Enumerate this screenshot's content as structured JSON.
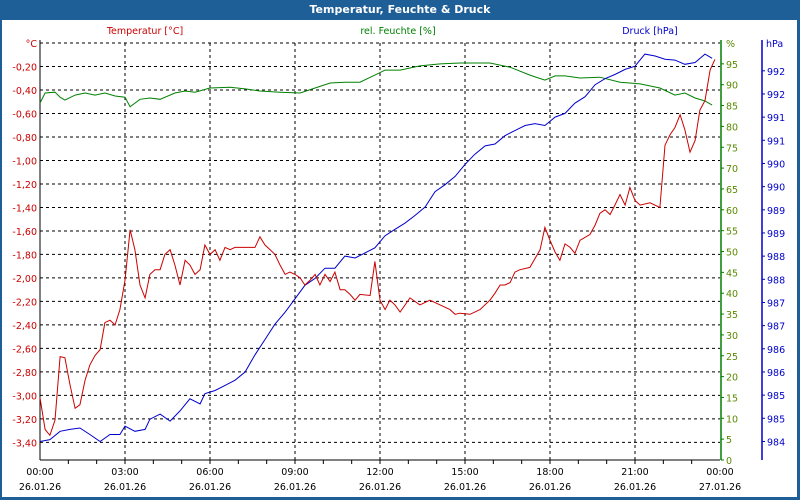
{
  "window": {
    "title": "Temperatur, Feuchte & Druck"
  },
  "chart_data": {
    "type": "line",
    "title": "Temperatur, Feuchte & Druck",
    "xlabel": "",
    "x_unit": "hours since 26.01.26 00:00",
    "xlim": [
      0,
      24
    ],
    "x_ticks": [
      {
        "time": "00:00",
        "date": "26.01.26",
        "h": 0
      },
      {
        "time": "03:00",
        "date": "26.01.26",
        "h": 3
      },
      {
        "time": "06:00",
        "date": "26.01.26",
        "h": 6
      },
      {
        "time": "09:00",
        "date": "26.01.26",
        "h": 9
      },
      {
        "time": "12:00",
        "date": "26.01.26",
        "h": 12
      },
      {
        "time": "15:00",
        "date": "26.01.26",
        "h": 15
      },
      {
        "time": "18:00",
        "date": "26.01.26",
        "h": 18
      },
      {
        "time": "21:00",
        "date": "26.01.26",
        "h": 21
      },
      {
        "time": "00:00",
        "date": "27.01.26",
        "h": 24
      }
    ],
    "grid": true,
    "axes": {
      "temperature": {
        "label": "Temperatur [°C]",
        "unit": "°C",
        "color": "#cc0000",
        "ylim": [
          -3.55,
          0.0
        ],
        "ticks": [
          "-0,20",
          "-0,40",
          "-0,60",
          "-0,80",
          "-1,00",
          "-1,20",
          "-1,40",
          "-1,60",
          "-1,80",
          "-2,00",
          "-2,20",
          "-2,40",
          "-2,60",
          "-2,80",
          "-3,00",
          "-3,20",
          "-3,40"
        ],
        "tick_values": [
          -0.2,
          -0.4,
          -0.6,
          -0.8,
          -1.0,
          -1.2,
          -1.4,
          -1.6,
          -1.8,
          -2.0,
          -2.2,
          -2.4,
          -2.6,
          -2.8,
          -3.0,
          -3.2,
          -3.4
        ]
      },
      "humidity": {
        "label": "rel. Feuchte [%]",
        "unit": "%",
        "color": "#008000",
        "ylim": [
          0,
          100
        ],
        "ticks": [
          "95",
          "90",
          "85",
          "80",
          "75",
          "70",
          "65",
          "60",
          "55",
          "50",
          "45",
          "40",
          "35",
          "30",
          "25",
          "20",
          "15",
          "10",
          "5",
          "0"
        ],
        "tick_values": [
          95,
          90,
          85,
          80,
          75,
          70,
          65,
          60,
          55,
          50,
          45,
          40,
          35,
          30,
          25,
          20,
          15,
          10,
          5,
          0
        ]
      },
      "pressure": {
        "label": "Druck [hPa]",
        "unit": "hPa",
        "color": "#0000cc",
        "ylim": [
          983.6,
          992.6
        ],
        "ticks": [
          "992",
          "992",
          "991",
          "991",
          "990",
          "990",
          "989",
          "989",
          "988",
          "988",
          "987",
          "987",
          "986",
          "986",
          "985",
          "985",
          "984"
        ],
        "tick_values": [
          992,
          991.5,
          991,
          990.5,
          990,
          989.5,
          989,
          988.5,
          988,
          987.5,
          987,
          986.5,
          986,
          985.5,
          985,
          984.5,
          984
        ]
      }
    },
    "series": [
      {
        "name": "Temperatur [°C]",
        "axis": "temperature",
        "color": "#cc0000",
        "t": [
          0,
          0.18,
          0.35,
          0.53,
          0.71,
          0.88,
          1.06,
          1.24,
          1.41,
          1.59,
          1.76,
          1.94,
          2.12,
          2.29,
          2.47,
          2.65,
          2.82,
          3.0,
          3.18,
          3.35,
          3.53,
          3.71,
          3.88,
          4.06,
          4.24,
          4.41,
          4.59,
          4.76,
          4.94,
          5.12,
          5.29,
          5.47,
          5.65,
          5.82,
          6.0,
          6.18,
          6.35,
          6.53,
          6.71,
          6.88,
          7.24,
          7.59,
          7.76,
          7.94,
          8.12,
          8.29,
          8.47,
          8.65,
          8.82,
          9.0,
          9.18,
          9.35,
          9.53,
          9.71,
          9.88,
          10.06,
          10.24,
          10.41,
          10.59,
          10.76,
          10.94,
          11.12,
          11.29,
          11.65,
          11.82,
          12.0,
          12.18,
          12.35,
          12.53,
          12.71,
          13.06,
          13.41,
          13.76,
          14.12,
          14.47,
          14.65,
          14.82,
          15.18,
          15.53,
          15.88,
          16.06,
          16.24,
          16.41,
          16.59,
          16.76,
          16.94,
          17.29,
          17.65,
          17.82,
          18.0,
          18.18,
          18.35,
          18.53,
          18.71,
          18.88,
          19.06,
          19.41,
          19.59,
          19.76,
          19.94,
          20.12,
          20.29,
          20.47,
          20.65,
          20.82,
          21.0,
          21.18,
          21.53,
          21.88,
          22.06,
          22.24,
          22.41,
          22.59,
          22.76,
          22.94,
          23.12,
          23.29,
          23.47,
          23.65,
          23.82
        ],
        "v": [
          -3.02,
          -3.29,
          -3.34,
          -3.21,
          -2.67,
          -2.68,
          -2.91,
          -3.11,
          -3.08,
          -2.87,
          -2.74,
          -2.66,
          -2.61,
          -2.38,
          -2.36,
          -2.4,
          -2.27,
          -2.02,
          -1.59,
          -1.76,
          -2.06,
          -2.17,
          -1.97,
          -1.93,
          -1.93,
          -1.8,
          -1.76,
          -1.89,
          -2.06,
          -1.85,
          -1.89,
          -1.97,
          -1.93,
          -1.72,
          -1.8,
          -1.76,
          -1.85,
          -1.74,
          -1.76,
          -1.74,
          -1.74,
          -1.74,
          -1.65,
          -1.72,
          -1.76,
          -1.8,
          -1.89,
          -1.97,
          -1.95,
          -1.97,
          -2.0,
          -2.06,
          -2.02,
          -1.97,
          -2.06,
          -1.97,
          -2.03,
          -1.95,
          -2.1,
          -2.1,
          -2.14,
          -2.19,
          -2.14,
          -2.15,
          -1.86,
          -2.19,
          -2.27,
          -2.19,
          -2.23,
          -2.29,
          -2.17,
          -2.23,
          -2.19,
          -2.23,
          -2.27,
          -2.31,
          -2.3,
          -2.31,
          -2.27,
          -2.19,
          -2.13,
          -2.06,
          -2.06,
          -2.04,
          -1.95,
          -1.93,
          -1.91,
          -1.76,
          -1.57,
          -1.68,
          -1.78,
          -1.85,
          -1.71,
          -1.74,
          -1.79,
          -1.68,
          -1.63,
          -1.55,
          -1.45,
          -1.42,
          -1.46,
          -1.38,
          -1.29,
          -1.38,
          -1.23,
          -1.34,
          -1.38,
          -1.36,
          -1.4,
          -0.87,
          -0.78,
          -0.72,
          -0.61,
          -0.74,
          -0.93,
          -0.83,
          -0.57,
          -0.49,
          -0.23,
          -0.14
        ]
      },
      {
        "name": "rel. Feuchte [%]",
        "axis": "humidity",
        "color": "#008000",
        "t": [
          0,
          0.18,
          0.53,
          0.71,
          0.88,
          1.24,
          1.59,
          1.94,
          2.29,
          2.65,
          3.0,
          3.18,
          3.53,
          3.88,
          4.24,
          4.76,
          5.12,
          5.47,
          6.0,
          6.71,
          7.24,
          7.76,
          8.47,
          9.18,
          9.71,
          10.24,
          10.76,
          11.29,
          11.82,
          12.18,
          12.71,
          13.41,
          14.12,
          14.82,
          15.88,
          16.59,
          17.29,
          17.82,
          18.18,
          18.53,
          19.06,
          19.76,
          20.47,
          21.18,
          21.88,
          22.41,
          22.76,
          23.12,
          23.47,
          23.72
        ],
        "v": [
          85.6,
          88.0,
          88.2,
          87.0,
          86.3,
          87.5,
          88.0,
          87.5,
          88.0,
          87.3,
          87.0,
          84.7,
          86.5,
          86.8,
          86.5,
          88.0,
          88.5,
          88.2,
          89.2,
          89.4,
          89.0,
          88.5,
          88.2,
          88.0,
          89.2,
          90.4,
          90.6,
          90.6,
          92.3,
          93.5,
          93.5,
          94.5,
          95.0,
          95.2,
          95.2,
          94.2,
          92.3,
          91.1,
          92.1,
          92.1,
          91.6,
          91.8,
          90.6,
          90.2,
          89.2,
          87.5,
          88.0,
          86.8,
          86.1,
          85.1
        ]
      },
      {
        "name": "Druck [hPa]",
        "axis": "pressure",
        "color": "#0000cc",
        "t": [
          0,
          0.35,
          0.71,
          1.06,
          1.41,
          1.76,
          2.12,
          2.47,
          2.82,
          3.0,
          3.35,
          3.71,
          3.88,
          4.24,
          4.59,
          4.94,
          5.29,
          5.65,
          5.82,
          6.18,
          6.53,
          6.88,
          7.24,
          7.59,
          7.94,
          8.29,
          8.65,
          9.0,
          9.35,
          9.71,
          10.06,
          10.41,
          10.76,
          11.12,
          11.47,
          11.82,
          12.18,
          12.53,
          12.88,
          13.24,
          13.59,
          13.94,
          14.29,
          14.65,
          15.0,
          15.35,
          15.71,
          16.06,
          16.41,
          16.76,
          17.12,
          17.47,
          17.82,
          18.18,
          18.53,
          18.88,
          19.24,
          19.59,
          19.94,
          20.29,
          20.65,
          21.0,
          21.35,
          21.71,
          22.06,
          22.41,
          22.76,
          23.12,
          23.47,
          23.72
        ],
        "v": [
          984.0,
          984.04,
          984.22,
          984.26,
          984.29,
          984.15,
          984.0,
          984.15,
          984.15,
          984.33,
          984.22,
          984.26,
          984.48,
          984.59,
          984.44,
          984.66,
          984.92,
          984.81,
          985.03,
          985.1,
          985.21,
          985.32,
          985.5,
          985.87,
          986.2,
          986.53,
          986.79,
          987.08,
          987.37,
          987.52,
          987.74,
          987.74,
          988.0,
          987.96,
          988.07,
          988.18,
          988.44,
          988.58,
          988.71,
          988.88,
          989.06,
          989.39,
          989.54,
          989.72,
          989.98,
          990.2,
          990.38,
          990.42,
          990.6,
          990.71,
          990.82,
          990.86,
          990.82,
          991.0,
          991.08,
          991.3,
          991.44,
          991.7,
          991.83,
          991.92,
          992.03,
          992.1,
          992.36,
          992.32,
          992.25,
          992.23,
          992.14,
          992.18,
          992.36,
          992.27
        ]
      }
    ]
  }
}
